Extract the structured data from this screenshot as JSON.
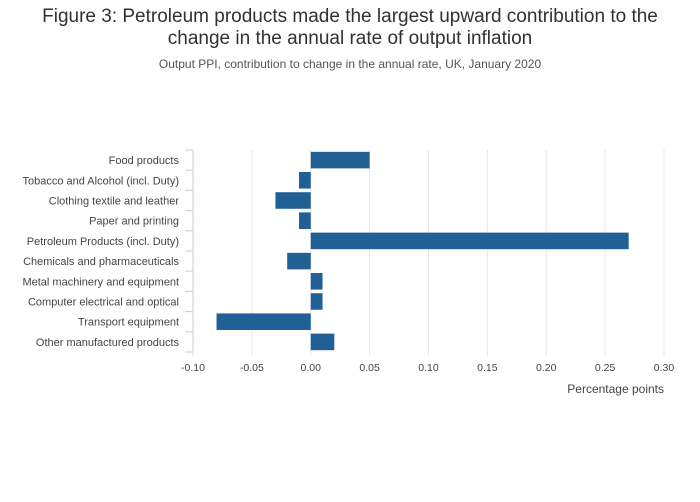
{
  "chart_data": {
    "type": "bar",
    "orientation": "horizontal",
    "title_lines": [
      "Figure 3: Petroleum products made the largest upward contribution to the",
      "change in the annual rate of output inflation"
    ],
    "subtitle": "Output PPI, contribution to change in the annual rate, UK, January 2020",
    "categories": [
      "Food products",
      "Tobacco and Alcohol (incl. Duty)",
      "Clothing textile and leather",
      "Paper and printing",
      "Petroleum Products (incl. Duty)",
      "Chemicals and pharmaceuticals",
      "Metal machinery and equipment",
      "Computer electrical and optical",
      "Transport equipment",
      "Other manufactured products"
    ],
    "values": [
      0.05,
      -0.01,
      -0.03,
      -0.01,
      0.27,
      -0.02,
      0.01,
      0.01,
      -0.08,
      0.02
    ],
    "xlim": [
      -0.1,
      0.3
    ],
    "xticks": [
      -0.1,
      -0.05,
      0.0,
      0.05,
      0.1,
      0.15,
      0.2,
      0.25,
      0.3
    ],
    "xtick_labels": [
      "-0.10",
      "-0.05",
      "0.00",
      "0.05",
      "0.10",
      "0.15",
      "0.20",
      "0.25",
      "0.30"
    ],
    "xlabel": "Percentage points",
    "ylabel": "",
    "grid": true,
    "colors": {
      "bar": "#206095",
      "grid": "#e6e6e6",
      "axis": "#cccccc"
    }
  }
}
